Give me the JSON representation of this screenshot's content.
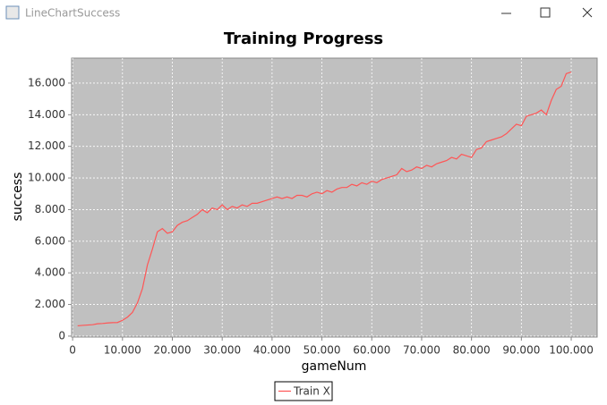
{
  "window": {
    "title": "LineChartSuccess"
  },
  "chart_data": {
    "type": "line",
    "title": "Training Progress",
    "x_label": "gameNum",
    "y_label": "success",
    "x": [
      1000,
      2000,
      3000,
      4000,
      5000,
      6000,
      7000,
      8000,
      9000,
      10000,
      11000,
      12000,
      13000,
      14000,
      15000,
      16000,
      17000,
      18000,
      19000,
      20000,
      21000,
      22000,
      23000,
      24000,
      25000,
      26000,
      27000,
      28000,
      29000,
      30000,
      31000,
      32000,
      33000,
      34000,
      35000,
      36000,
      37000,
      38000,
      39000,
      40000,
      41000,
      42000,
      43000,
      44000,
      45000,
      46000,
      47000,
      48000,
      49000,
      50000,
      51000,
      52000,
      53000,
      54000,
      55000,
      56000,
      57000,
      58000,
      59000,
      60000,
      61000,
      62000,
      63000,
      64000,
      65000,
      66000,
      67000,
      68000,
      69000,
      70000,
      71000,
      72000,
      73000,
      74000,
      75000,
      76000,
      77000,
      78000,
      79000,
      80000,
      81000,
      82000,
      83000,
      84000,
      85000,
      86000,
      87000,
      88000,
      89000,
      90000,
      91000,
      92000,
      93000,
      94000,
      95000,
      96000,
      97000,
      98000,
      99000,
      100000
    ],
    "series": [
      {
        "name": "Train X",
        "color": "#ff5555",
        "values": [
          650,
          680,
          700,
          720,
          780,
          800,
          830,
          850,
          860,
          1000,
          1200,
          1500,
          2100,
          3000,
          4500,
          5500,
          6600,
          6800,
          6500,
          6600,
          7000,
          7200,
          7300,
          7500,
          7700,
          8000,
          7800,
          8100,
          8000,
          8300,
          8000,
          8200,
          8100,
          8300,
          8200,
          8400,
          8400,
          8500,
          8600,
          8700,
          8800,
          8700,
          8800,
          8700,
          8900,
          8900,
          8800,
          9000,
          9100,
          9000,
          9200,
          9100,
          9300,
          9400,
          9400,
          9600,
          9500,
          9700,
          9600,
          9800,
          9700,
          9900,
          10000,
          10100,
          10200,
          10600,
          10400,
          10500,
          10700,
          10600,
          10800,
          10700,
          10900,
          11000,
          11100,
          11300,
          11200,
          11500,
          11400,
          11300,
          11800,
          11900,
          12300,
          12400,
          12500,
          12600,
          12800,
          13100,
          13400,
          13300,
          13900,
          14000,
          14100,
          14300,
          14000,
          14900,
          15600,
          15800,
          16600,
          16700
        ]
      }
    ],
    "xlim": [
      -200,
      105200
    ],
    "ylim": [
      -60,
      17580
    ],
    "xticks": [
      0,
      {
        "value": 10000,
        "label": "10.000"
      },
      {
        "value": 20000,
        "label": "20.000"
      },
      {
        "value": 30000,
        "label": "30.000"
      },
      {
        "value": 40000,
        "label": "40.000"
      },
      {
        "value": 50000,
        "label": "50.000"
      },
      {
        "value": 60000,
        "label": "60.000"
      },
      {
        "value": 70000,
        "label": "70.000"
      },
      {
        "value": 80000,
        "label": "80.000"
      },
      {
        "value": 90000,
        "label": "90.000"
      },
      {
        "value": 100000,
        "label": "100.000"
      }
    ],
    "yticks": [
      0,
      {
        "value": 2000,
        "label": "2.000"
      },
      {
        "value": 4000,
        "label": "4.000"
      },
      {
        "value": 6000,
        "label": "6.000"
      },
      {
        "value": 8000,
        "label": "8.000"
      },
      {
        "value": 10000,
        "label": "10.000"
      },
      {
        "value": 12000,
        "label": "12.000"
      },
      {
        "value": 14000,
        "label": "14.000"
      },
      {
        "value": 16000,
        "label": "16.000"
      }
    ],
    "grid": true,
    "plot_background": "#c0c0c0",
    "legend": "bottom"
  }
}
